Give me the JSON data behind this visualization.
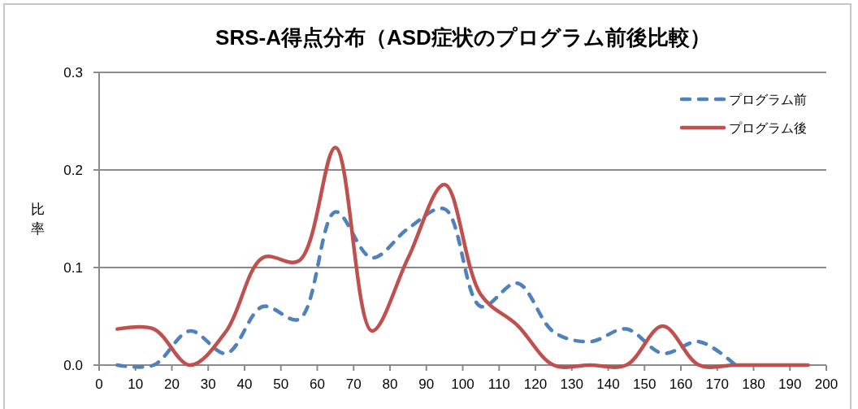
{
  "chart_data": {
    "type": "line",
    "title": "SRS-A得点分布（ASD症状のプログラム前後比較）",
    "ylabel": "比率",
    "x": [
      5,
      15,
      25,
      35,
      45,
      55,
      65,
      75,
      85,
      95,
      105,
      115,
      125,
      135,
      145,
      155,
      165,
      175,
      185,
      195
    ],
    "xlim": [
      0,
      200
    ],
    "xticks": [
      0,
      10,
      20,
      30,
      40,
      50,
      60,
      70,
      80,
      90,
      100,
      110,
      120,
      130,
      140,
      150,
      160,
      170,
      180,
      190,
      200
    ],
    "ylim": [
      0,
      0.3
    ],
    "yticks": [
      {
        "value": 0,
        "label": "0.0"
      },
      0.1,
      0.2,
      0.3
    ],
    "grid": "y",
    "legend": "top right",
    "series": [
      {
        "name": "プログラム前",
        "color": "#4f81bd",
        "line_style": "dashed",
        "values": [
          0,
          0,
          0.035,
          0.012,
          0.06,
          0.047,
          0.157,
          0.11,
          0.14,
          0.16,
          0.06,
          0.084,
          0.034,
          0.024,
          0.037,
          0.012,
          0.024,
          0,
          null,
          null
        ]
      },
      {
        "name": "プログラム後",
        "color": "#c0504d",
        "line_style": "solid",
        "values": [
          0.037,
          0.037,
          0,
          0.035,
          0.11,
          0.107,
          0.223,
          0.035,
          0.11,
          0.185,
          0.072,
          0.041,
          0,
          0,
          0,
          0.04,
          0,
          0,
          0,
          0
        ]
      }
    ]
  }
}
